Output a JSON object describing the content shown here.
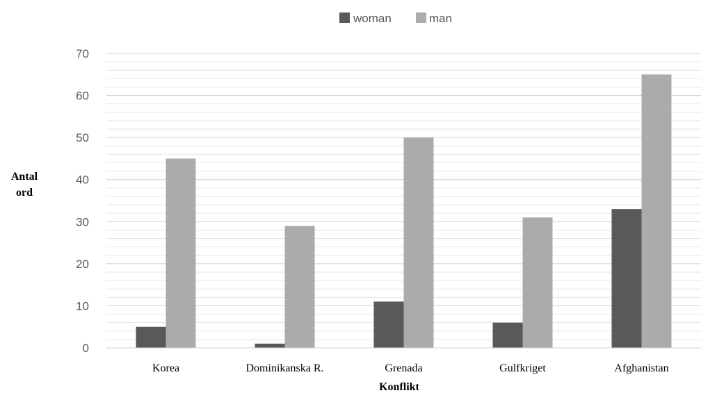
{
  "chart_data": {
    "type": "bar",
    "title": "",
    "xlabel": "Konflikt",
    "ylabel_lines": [
      "Antal",
      "ord"
    ],
    "categories": [
      "Korea",
      "Dominikanska R.",
      "Grenada",
      "Gulfkriget",
      "Afghanistan"
    ],
    "series": [
      {
        "name": "woman",
        "color": "#595959",
        "values": [
          5,
          1,
          11,
          6,
          33
        ]
      },
      {
        "name": "man",
        "color": "#ababab",
        "values": [
          45,
          29,
          50,
          31,
          65
        ]
      }
    ],
    "ylim": [
      0,
      70
    ],
    "yticks": [
      "0",
      "10",
      "20",
      "30",
      "40",
      "50",
      "60",
      "70"
    ],
    "grid": true,
    "minor_grid_step": 2,
    "legend": "top-center"
  }
}
